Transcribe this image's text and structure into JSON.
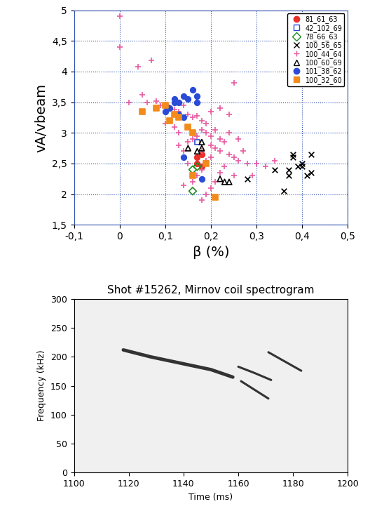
{
  "chart_data": [
    {
      "type": "scatter",
      "x_label": "β (%)",
      "y_label": "vA/vbeam",
      "xlim": [
        -0.1,
        0.5
      ],
      "xticks": [
        {
          "value": -0.1,
          "label": "-0,1"
        },
        0,
        {
          "value": 0.1,
          "label": "0,1"
        },
        {
          "value": 0.2,
          "label": "0,2"
        },
        {
          "value": 0.3,
          "label": "0,3"
        },
        {
          "value": 0.4,
          "label": "0,4"
        },
        {
          "value": 0.5,
          "label": "0,5"
        }
      ],
      "ylim": [
        1.5,
        5
      ],
      "yticks": [
        {
          "value": 1.5,
          "label": "1,5"
        },
        2,
        {
          "value": 2.5,
          "label": "2,5"
        },
        3,
        {
          "value": 3.5,
          "label": "3,5"
        },
        4,
        {
          "value": 4.5,
          "label": "4,5"
        },
        5
      ],
      "grid": true,
      "legend": "upper right",
      "series": [
        {
          "name": "81_61_63",
          "color": "#e8312a",
          "marker": "circle",
          "x": [
            0.17,
            0.18,
            0.17,
            0.18
          ],
          "values": [
            2.6,
            2.65,
            2.5,
            2.45
          ]
        },
        {
          "name": "42_102_69",
          "color": "#2a4bd7",
          "marker": "square_open",
          "x": [
            0.17
          ],
          "values": [
            2.85
          ]
        },
        {
          "name": "78_66_63",
          "color": "#1f8a1f",
          "marker": "diamond_open",
          "x": [
            0.16,
            0.16,
            0.17
          ],
          "values": [
            2.05,
            2.4,
            2.45
          ]
        },
        {
          "name": "100_56_65",
          "color": "#000000",
          "marker": "x",
          "x": [
            0.34,
            0.36,
            0.37,
            0.38,
            0.38,
            0.39,
            0.4,
            0.4,
            0.41,
            0.42,
            0.42,
            0.37,
            0.28
          ],
          "values": [
            2.4,
            2.05,
            2.3,
            2.65,
            2.6,
            2.45,
            2.5,
            2.45,
            2.3,
            2.65,
            2.35,
            2.4,
            2.25
          ]
        },
        {
          "name": "100_44_64",
          "color": "#e85aa0",
          "marker": "plus",
          "x": [
            0.0,
            0.0,
            0.04,
            0.07,
            0.02,
            0.05,
            0.06,
            0.08,
            0.09,
            0.11,
            0.12,
            0.13,
            0.14,
            0.15,
            0.16,
            0.17,
            0.18,
            0.19,
            0.2,
            0.22,
            0.25,
            0.24,
            0.18,
            0.19,
            0.2,
            0.21,
            0.22,
            0.17,
            0.16,
            0.15,
            0.14,
            0.13,
            0.2,
            0.21,
            0.22,
            0.23,
            0.24,
            0.25,
            0.26,
            0.27,
            0.28,
            0.3,
            0.32,
            0.34,
            0.2,
            0.19,
            0.18,
            0.17,
            0.18,
            0.19,
            0.2,
            0.21,
            0.22,
            0.14,
            0.16,
            0.15,
            0.13,
            0.12,
            0.1,
            0.23,
            0.25,
            0.29,
            0.26,
            0.24,
            0.18
          ],
          "values": [
            4.9,
            4.4,
            4.08,
            4.18,
            3.5,
            3.62,
            3.5,
            3.52,
            3.45,
            3.42,
            3.38,
            3.35,
            3.45,
            3.3,
            3.25,
            3.28,
            3.2,
            3.15,
            3.35,
            3.4,
            3.82,
            3.3,
            3.05,
            3.0,
            2.95,
            3.05,
            2.9,
            2.95,
            2.9,
            2.85,
            2.7,
            2.8,
            2.8,
            2.75,
            2.7,
            2.85,
            2.65,
            2.6,
            2.55,
            2.7,
            2.5,
            2.5,
            2.45,
            2.55,
            2.6,
            2.55,
            2.4,
            2.3,
            1.9,
            2.0,
            2.1,
            2.2,
            2.35,
            2.15,
            2.2,
            2.5,
            3.0,
            3.1,
            3.15,
            2.45,
            2.3,
            2.3,
            2.9,
            3.0,
            2.7
          ]
        },
        {
          "name": "100_60_69",
          "color": "#000000",
          "marker": "triangle_open",
          "x": [
            0.15,
            0.18,
            0.18,
            0.22,
            0.23,
            0.24,
            0.17
          ],
          "values": [
            2.75,
            2.85,
            2.75,
            2.25,
            2.2,
            2.2,
            2.7
          ]
        },
        {
          "name": "101_38_62",
          "color": "#2a4bd7",
          "marker": "circle",
          "x": [
            0.1,
            0.11,
            0.12,
            0.12,
            0.13,
            0.14,
            0.15,
            0.16,
            0.17,
            0.1,
            0.13,
            0.14,
            0.17,
            0.18,
            0.14
          ],
          "values": [
            3.45,
            3.4,
            3.5,
            3.55,
            3.5,
            3.6,
            3.55,
            3.7,
            3.6,
            3.35,
            3.3,
            3.25,
            3.5,
            2.25,
            2.6
          ]
        },
        {
          "name": "100_32_60",
          "color": "#f28a1c",
          "marker": "square",
          "x": [
            0.05,
            0.08,
            0.1,
            0.11,
            0.12,
            0.13,
            0.15,
            0.16,
            0.16,
            0.19,
            0.21
          ],
          "values": [
            3.35,
            3.4,
            3.45,
            3.2,
            3.3,
            3.25,
            3.1,
            3.0,
            2.3,
            2.5,
            1.95
          ]
        }
      ]
    },
    {
      "type": "line",
      "title": "Shot #15262, Mirnov coil spectrogram",
      "x_label": "Time (ms)",
      "y_label": "Frequency (kHz)",
      "xlim": [
        1100,
        1200
      ],
      "xticks": [
        1100,
        1120,
        1140,
        1160,
        1180,
        1200
      ],
      "ylim": [
        0,
        300
      ],
      "yticks": [
        0,
        50,
        100,
        150,
        200,
        250,
        300
      ],
      "grid": false,
      "series": [
        {
          "color": "#333333",
          "x": [
            1118,
            1128,
            1140,
            1150,
            1158
          ],
          "values": [
            212,
            200,
            188,
            178,
            165
          ]
        },
        {
          "color": "#333333",
          "x": [
            1160,
            1166,
            1172
          ],
          "values": [
            183,
            172,
            160
          ]
        },
        {
          "color": "#333333",
          "x": [
            1161,
            1166,
            1171
          ],
          "values": [
            158,
            143,
            128
          ]
        },
        {
          "color": "#333333",
          "x": [
            1171,
            1177,
            1183
          ],
          "values": [
            208,
            192,
            176
          ]
        }
      ]
    }
  ]
}
